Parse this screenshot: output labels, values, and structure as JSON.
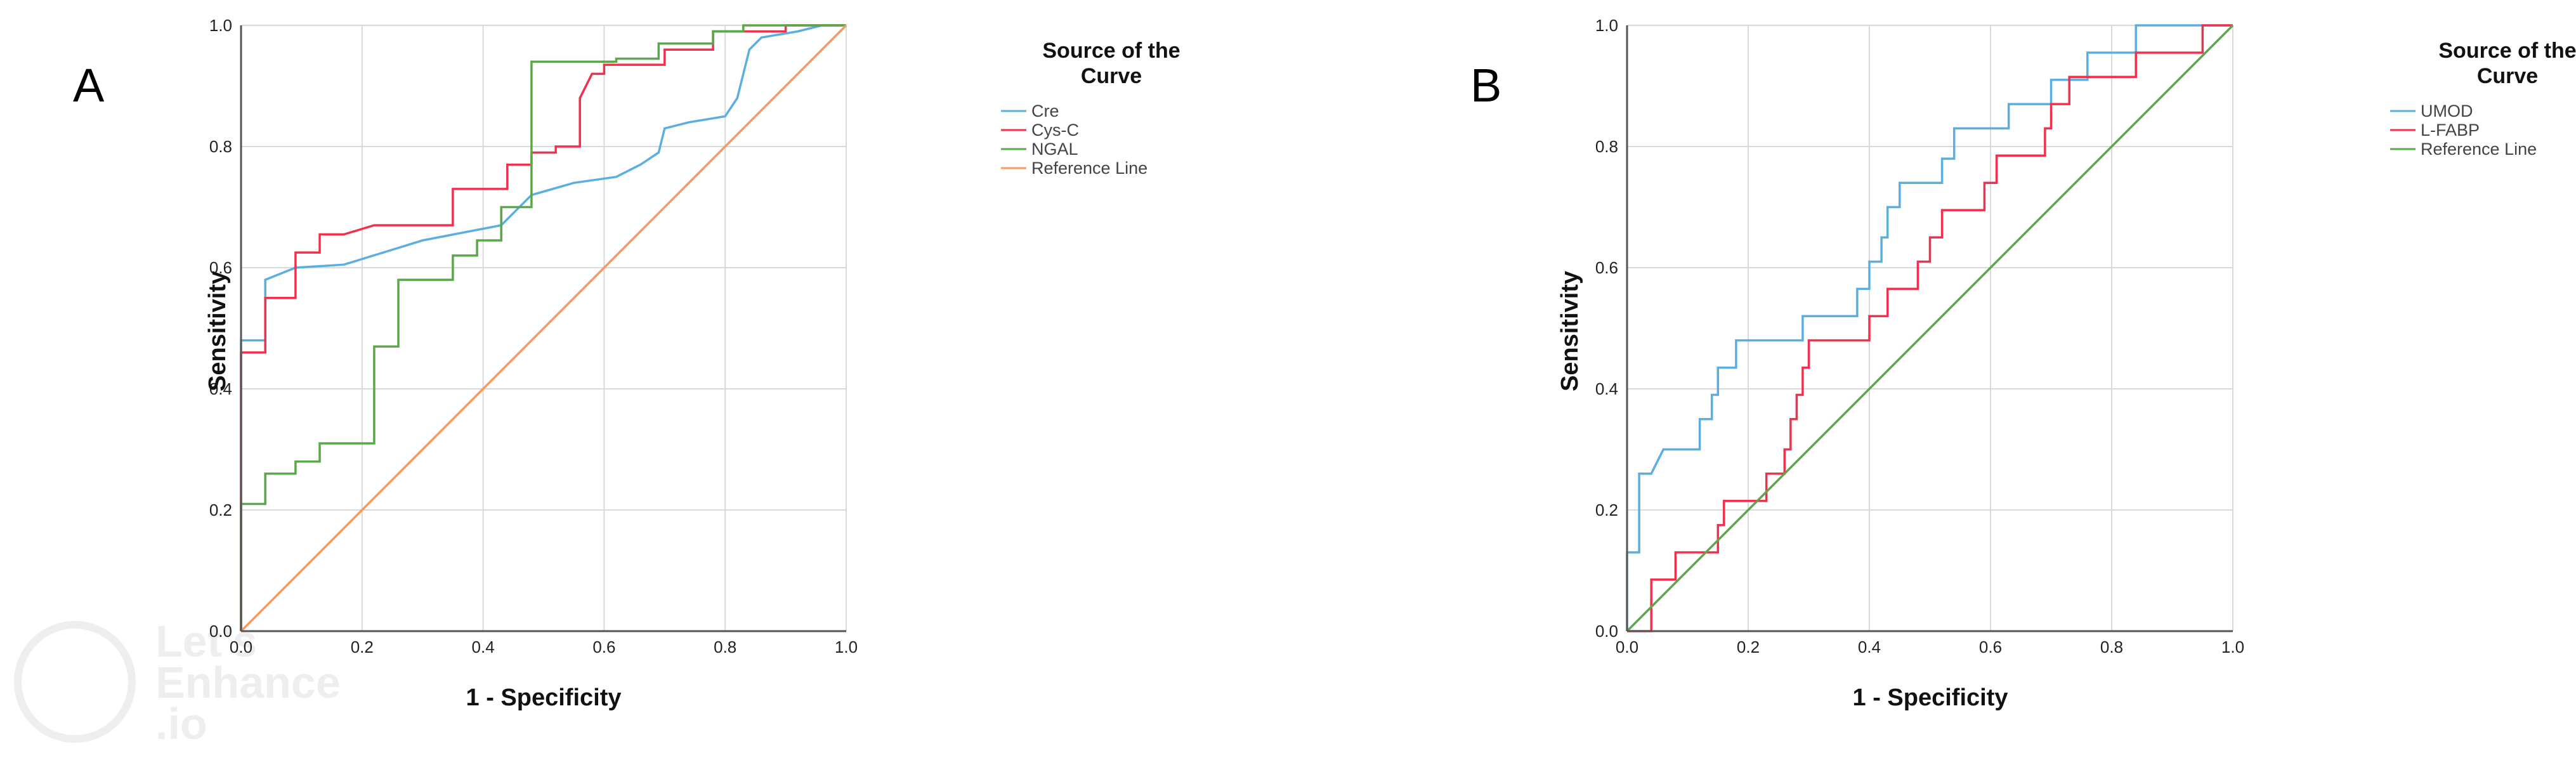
{
  "watermark": {
    "line1": "Let's",
    "line2": "Enhance",
    "line3": ".io"
  },
  "chart_data": [
    {
      "panel": "A",
      "type": "line",
      "title": "",
      "xlabel": "1 - Specificity",
      "ylabel": "Sensitivity",
      "xlim": [
        0,
        1
      ],
      "ylim": [
        0,
        1
      ],
      "xticks": [
        "0.0",
        "0.2",
        "0.4",
        "0.6",
        "0.8",
        "1.0"
      ],
      "yticks": [
        "0.0",
        "0.2",
        "0.4",
        "0.6",
        "0.8",
        "1.0"
      ],
      "grid": true,
      "legend_title": "Source of the Curve",
      "legend_position": "right",
      "series": [
        {
          "name": "Cre",
          "color": "#5aafe0",
          "points": [
            [
              0,
              0
            ],
            [
              0,
              0.48
            ],
            [
              0.04,
              0.48
            ],
            [
              0.04,
              0.58
            ],
            [
              0.09,
              0.6
            ],
            [
              0.17,
              0.605
            ],
            [
              0.3,
              0.645
            ],
            [
              0.43,
              0.67
            ],
            [
              0.48,
              0.72
            ],
            [
              0.55,
              0.74
            ],
            [
              0.62,
              0.75
            ],
            [
              0.66,
              0.77
            ],
            [
              0.69,
              0.79
            ],
            [
              0.7,
              0.83
            ],
            [
              0.74,
              0.84
            ],
            [
              0.8,
              0.85
            ],
            [
              0.82,
              0.88
            ],
            [
              0.84,
              0.96
            ],
            [
              0.86,
              0.98
            ],
            [
              0.92,
              0.99
            ],
            [
              0.96,
              1.0
            ],
            [
              1.0,
              1.0
            ]
          ]
        },
        {
          "name": "Cys-C",
          "color": "#f0304c",
          "points": [
            [
              0,
              0
            ],
            [
              0,
              0.46
            ],
            [
              0.04,
              0.46
            ],
            [
              0.04,
              0.55
            ],
            [
              0.09,
              0.55
            ],
            [
              0.09,
              0.625
            ],
            [
              0.13,
              0.625
            ],
            [
              0.13,
              0.655
            ],
            [
              0.17,
              0.655
            ],
            [
              0.22,
              0.67
            ],
            [
              0.35,
              0.67
            ],
            [
              0.35,
              0.73
            ],
            [
              0.44,
              0.73
            ],
            [
              0.44,
              0.77
            ],
            [
              0.48,
              0.77
            ],
            [
              0.48,
              0.79
            ],
            [
              0.52,
              0.79
            ],
            [
              0.52,
              0.8
            ],
            [
              0.56,
              0.8
            ],
            [
              0.56,
              0.88
            ],
            [
              0.58,
              0.92
            ],
            [
              0.6,
              0.92
            ],
            [
              0.6,
              0.935
            ],
            [
              0.7,
              0.935
            ],
            [
              0.7,
              0.96
            ],
            [
              0.78,
              0.96
            ],
            [
              0.78,
              0.99
            ],
            [
              0.9,
              0.99
            ],
            [
              0.9,
              1.0
            ],
            [
              1.0,
              1.0
            ]
          ]
        },
        {
          "name": "NGAL",
          "color": "#5aa84a",
          "points": [
            [
              0,
              0
            ],
            [
              0,
              0.21
            ],
            [
              0.04,
              0.21
            ],
            [
              0.04,
              0.26
            ],
            [
              0.09,
              0.26
            ],
            [
              0.09,
              0.28
            ],
            [
              0.13,
              0.28
            ],
            [
              0.13,
              0.31
            ],
            [
              0.22,
              0.31
            ],
            [
              0.22,
              0.47
            ],
            [
              0.26,
              0.47
            ],
            [
              0.26,
              0.58
            ],
            [
              0.35,
              0.58
            ],
            [
              0.35,
              0.62
            ],
            [
              0.39,
              0.62
            ],
            [
              0.39,
              0.645
            ],
            [
              0.43,
              0.645
            ],
            [
              0.43,
              0.7
            ],
            [
              0.48,
              0.7
            ],
            [
              0.48,
              0.94
            ],
            [
              0.62,
              0.94
            ],
            [
              0.62,
              0.945
            ],
            [
              0.69,
              0.945
            ],
            [
              0.69,
              0.97
            ],
            [
              0.78,
              0.97
            ],
            [
              0.78,
              0.99
            ],
            [
              0.83,
              0.99
            ],
            [
              0.83,
              1.0
            ],
            [
              1.0,
              1.0
            ]
          ]
        },
        {
          "name": "Reference Line",
          "color": "#f79a62",
          "points": [
            [
              0,
              0
            ],
            [
              1,
              1
            ]
          ]
        }
      ]
    },
    {
      "panel": "B",
      "type": "line",
      "title": "",
      "xlabel": "1 - Specificity",
      "ylabel": "Sensitivity",
      "xlim": [
        0,
        1
      ],
      "ylim": [
        0,
        1
      ],
      "xticks": [
        "0.0",
        "0.2",
        "0.4",
        "0.6",
        "0.8",
        "1.0"
      ],
      "yticks": [
        "0.0",
        "0.2",
        "0.4",
        "0.6",
        "0.8",
        "1.0"
      ],
      "grid": true,
      "legend_title": "Source of the Curve",
      "legend_position": "right",
      "series": [
        {
          "name": "UMOD",
          "color": "#5aafe0",
          "points": [
            [
              0,
              0
            ],
            [
              0,
              0.13
            ],
            [
              0.02,
              0.13
            ],
            [
              0.02,
              0.26
            ],
            [
              0.04,
              0.26
            ],
            [
              0.06,
              0.3
            ],
            [
              0.1,
              0.3
            ],
            [
              0.12,
              0.3
            ],
            [
              0.12,
              0.35
            ],
            [
              0.14,
              0.35
            ],
            [
              0.14,
              0.39
            ],
            [
              0.15,
              0.39
            ],
            [
              0.15,
              0.435
            ],
            [
              0.18,
              0.435
            ],
            [
              0.18,
              0.48
            ],
            [
              0.29,
              0.48
            ],
            [
              0.29,
              0.52
            ],
            [
              0.38,
              0.52
            ],
            [
              0.38,
              0.565
            ],
            [
              0.4,
              0.565
            ],
            [
              0.4,
              0.61
            ],
            [
              0.42,
              0.61
            ],
            [
              0.42,
              0.65
            ],
            [
              0.43,
              0.65
            ],
            [
              0.43,
              0.7
            ],
            [
              0.45,
              0.7
            ],
            [
              0.45,
              0.74
            ],
            [
              0.52,
              0.74
            ],
            [
              0.52,
              0.78
            ],
            [
              0.54,
              0.78
            ],
            [
              0.54,
              0.83
            ],
            [
              0.63,
              0.83
            ],
            [
              0.63,
              0.87
            ],
            [
              0.7,
              0.87
            ],
            [
              0.7,
              0.91
            ],
            [
              0.76,
              0.91
            ],
            [
              0.76,
              0.955
            ],
            [
              0.84,
              0.955
            ],
            [
              0.84,
              1.0
            ],
            [
              1.0,
              1.0
            ]
          ]
        },
        {
          "name": "L-FABP",
          "color": "#f0304c",
          "points": [
            [
              0,
              0
            ],
            [
              0.04,
              0
            ],
            [
              0.04,
              0.085
            ],
            [
              0.08,
              0.085
            ],
            [
              0.08,
              0.13
            ],
            [
              0.15,
              0.13
            ],
            [
              0.15,
              0.175
            ],
            [
              0.16,
              0.175
            ],
            [
              0.16,
              0.215
            ],
            [
              0.23,
              0.215
            ],
            [
              0.23,
              0.26
            ],
            [
              0.26,
              0.26
            ],
            [
              0.26,
              0.3
            ],
            [
              0.27,
              0.3
            ],
            [
              0.27,
              0.35
            ],
            [
              0.28,
              0.35
            ],
            [
              0.28,
              0.39
            ],
            [
              0.29,
              0.39
            ],
            [
              0.29,
              0.435
            ],
            [
              0.3,
              0.435
            ],
            [
              0.3,
              0.48
            ],
            [
              0.4,
              0.48
            ],
            [
              0.4,
              0.52
            ],
            [
              0.43,
              0.52
            ],
            [
              0.43,
              0.565
            ],
            [
              0.48,
              0.565
            ],
            [
              0.48,
              0.61
            ],
            [
              0.5,
              0.61
            ],
            [
              0.5,
              0.65
            ],
            [
              0.52,
              0.65
            ],
            [
              0.52,
              0.695
            ],
            [
              0.59,
              0.695
            ],
            [
              0.59,
              0.74
            ],
            [
              0.61,
              0.74
            ],
            [
              0.61,
              0.785
            ],
            [
              0.69,
              0.785
            ],
            [
              0.69,
              0.83
            ],
            [
              0.7,
              0.83
            ],
            [
              0.7,
              0.87
            ],
            [
              0.73,
              0.87
            ],
            [
              0.73,
              0.915
            ],
            [
              0.84,
              0.915
            ],
            [
              0.84,
              0.955
            ],
            [
              0.95,
              0.955
            ],
            [
              0.95,
              1.0
            ],
            [
              1.0,
              1.0
            ]
          ]
        },
        {
          "name": "Reference Line",
          "color": "#5aa84a",
          "points": [
            [
              0,
              0
            ],
            [
              1,
              1
            ]
          ]
        }
      ]
    }
  ]
}
